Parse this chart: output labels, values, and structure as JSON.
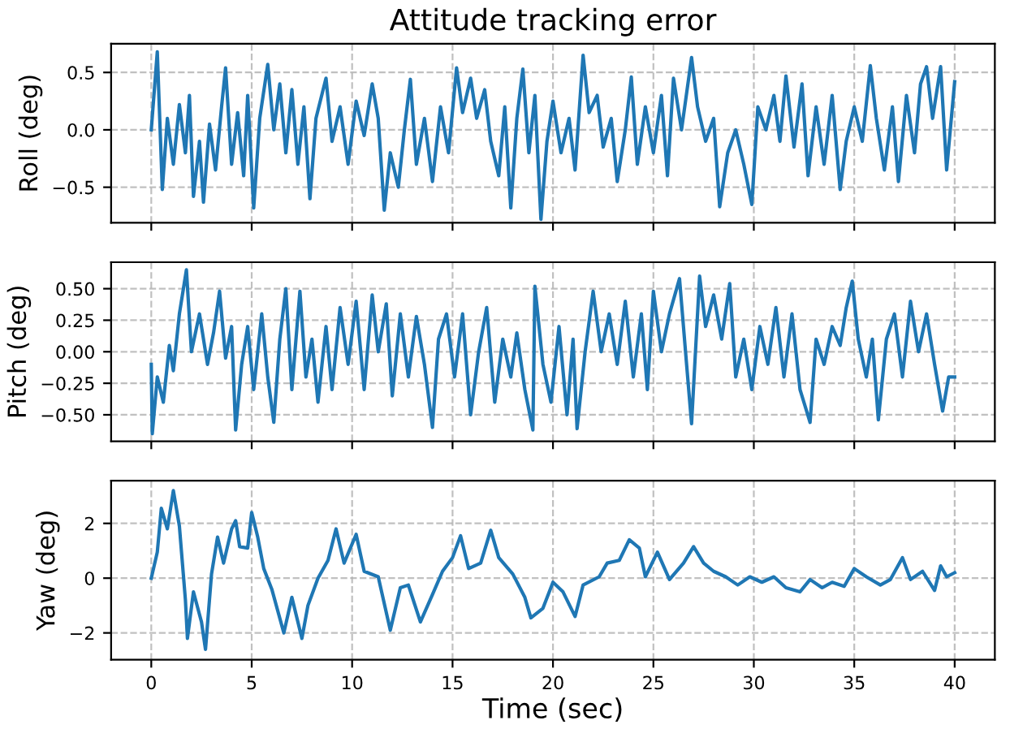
{
  "chart_data": [
    {
      "type": "line",
      "title": "Attitude tracking error",
      "ylabel": "Roll (deg)",
      "xlim": [
        -2,
        42
      ],
      "xticks": [
        0,
        5,
        10,
        15,
        20,
        25,
        30,
        35,
        40
      ],
      "ylim": [
        -0.81,
        0.75
      ],
      "yticks": [
        {
          "value": -0.5,
          "label": "−0.5"
        },
        {
          "value": 0,
          "label": "0.0"
        },
        0.5
      ],
      "grid": true,
      "tick_labels": "y",
      "series": [
        {
          "color": "#1f77b4",
          "x": [
            0,
            0.3,
            0.55,
            0.8,
            1.1,
            1.4,
            1.7,
            1.9,
            2.1,
            2.4,
            2.6,
            2.9,
            3.2,
            3.5,
            3.7,
            4.0,
            4.3,
            4.6,
            4.8,
            5.1,
            5.4,
            5.8,
            6.1,
            6.4,
            6.7,
            7.0,
            7.3,
            7.6,
            7.9,
            8.2,
            8.7,
            9.0,
            9.4,
            9.8,
            10.2,
            10.6,
            11.0,
            11.3,
            11.6,
            11.9,
            12.3,
            12.6,
            12.9,
            13.2,
            13.6,
            14.0,
            14.4,
            14.8,
            15.2,
            15.5,
            15.9,
            16.2,
            16.6,
            16.9,
            17.3,
            17.6,
            17.9,
            18.2,
            18.5,
            18.8,
            19.1,
            19.4,
            19.7,
            20.0,
            20.4,
            20.8,
            21.1,
            21.5,
            21.8,
            22.2,
            22.5,
            22.9,
            23.2,
            23.6,
            23.9,
            24.2,
            24.6,
            25.0,
            25.4,
            25.7,
            26.0,
            26.4,
            26.9,
            27.2,
            27.6,
            28.0,
            28.3,
            28.7,
            29.1,
            29.5,
            29.9,
            30.2,
            30.6,
            31.0,
            31.3,
            31.6,
            32.0,
            32.4,
            32.7,
            33.1,
            33.5,
            33.9,
            34.3,
            34.6,
            35.0,
            35.4,
            35.8,
            36.1,
            36.5,
            36.9,
            37.2,
            37.6,
            38.0,
            38.3,
            38.6,
            38.9,
            39.3,
            39.6,
            40.0
          ],
          "values": [
            0.0,
            0.68,
            -0.52,
            0.1,
            -0.3,
            0.22,
            -0.2,
            0.3,
            -0.58,
            -0.1,
            -0.63,
            0.05,
            -0.35,
            0.2,
            0.54,
            -0.3,
            0.15,
            -0.4,
            0.3,
            -0.68,
            0.1,
            0.57,
            0.0,
            0.4,
            -0.2,
            0.35,
            -0.3,
            0.2,
            -0.6,
            0.1,
            0.45,
            -0.1,
            0.2,
            -0.3,
            0.25,
            -0.05,
            0.4,
            0.1,
            -0.7,
            -0.2,
            -0.5,
            0.0,
            0.44,
            -0.3,
            0.1,
            -0.45,
            0.2,
            -0.2,
            0.54,
            0.15,
            0.45,
            0.1,
            0.35,
            -0.1,
            -0.4,
            0.2,
            -0.68,
            0.1,
            0.53,
            -0.2,
            0.3,
            -0.78,
            -0.1,
            0.25,
            -0.2,
            0.1,
            -0.35,
            0.65,
            0.15,
            0.3,
            -0.15,
            0.1,
            -0.45,
            0.0,
            0.46,
            -0.3,
            0.2,
            -0.2,
            0.3,
            -0.4,
            0.45,
            0.0,
            0.63,
            0.2,
            -0.1,
            0.1,
            -0.67,
            -0.2,
            0.0,
            -0.3,
            -0.65,
            0.2,
            0.0,
            0.3,
            -0.1,
            0.47,
            -0.15,
            0.4,
            -0.4,
            0.2,
            -0.3,
            0.3,
            -0.52,
            -0.1,
            0.2,
            -0.1,
            0.56,
            0.1,
            -0.35,
            0.2,
            -0.45,
            0.3,
            -0.2,
            0.4,
            0.55,
            0.1,
            0.55,
            -0.35,
            0.42
          ]
        }
      ]
    },
    {
      "type": "line",
      "ylabel": "Pitch (deg)",
      "xlim": [
        -2,
        42
      ],
      "xticks": [
        0,
        5,
        10,
        15,
        20,
        25,
        30,
        35,
        40
      ],
      "ylim": [
        -0.71,
        0.71
      ],
      "yticks": [
        {
          "value": -0.5,
          "label": "−0.50"
        },
        {
          "value": -0.25,
          "label": "−0.25"
        },
        {
          "value": 0,
          "label": "0.00"
        },
        {
          "value": 0.25,
          "label": "0.25"
        },
        {
          "value": 0.5,
          "label": "0.50"
        }
      ],
      "grid": true,
      "tick_labels": "y",
      "series": [
        {
          "color": "#1f77b4",
          "x": [
            0,
            0.05,
            0.3,
            0.6,
            0.9,
            1.1,
            1.4,
            1.75,
            2.0,
            2.4,
            2.8,
            3.1,
            3.4,
            3.7,
            4.0,
            4.2,
            4.5,
            4.8,
            5.1,
            5.5,
            5.8,
            6.1,
            6.4,
            6.7,
            7.0,
            7.4,
            7.7,
            8.0,
            8.3,
            8.7,
            9.0,
            9.4,
            9.8,
            10.2,
            10.6,
            11.0,
            11.3,
            11.7,
            12.0,
            12.4,
            12.8,
            13.2,
            13.6,
            14.0,
            14.3,
            14.7,
            15.1,
            15.5,
            15.9,
            16.3,
            16.7,
            17.1,
            17.5,
            17.9,
            18.2,
            18.6,
            19.0,
            19.1,
            19.5,
            19.9,
            20.3,
            20.7,
            21.0,
            21.2,
            21.6,
            22.0,
            22.4,
            22.8,
            23.2,
            23.6,
            24.0,
            24.4,
            24.7,
            25.0,
            25.4,
            25.8,
            26.3,
            26.6,
            26.9,
            27.3,
            27.6,
            28.0,
            28.4,
            28.8,
            29.1,
            29.5,
            29.9,
            30.3,
            30.7,
            31.1,
            31.5,
            31.9,
            32.3,
            32.8,
            33.1,
            33.5,
            33.9,
            34.3,
            34.6,
            34.9,
            35.2,
            35.6,
            35.9,
            36.2,
            36.6,
            37.0,
            37.4,
            37.8,
            38.2,
            38.6,
            39.0,
            39.4,
            39.7,
            40.0
          ],
          "values": [
            -0.1,
            -0.65,
            -0.2,
            -0.4,
            0.05,
            -0.15,
            0.3,
            0.65,
            0.0,
            0.3,
            -0.1,
            0.15,
            0.48,
            -0.05,
            0.2,
            -0.62,
            -0.1,
            0.2,
            -0.3,
            0.3,
            -0.2,
            -0.56,
            0.1,
            0.5,
            -0.3,
            0.48,
            -0.2,
            0.1,
            -0.4,
            0.2,
            -0.3,
            0.35,
            -0.1,
            0.4,
            -0.3,
            0.45,
            0.0,
            0.38,
            -0.35,
            0.3,
            -0.2,
            0.28,
            -0.1,
            -0.6,
            0.1,
            0.3,
            -0.2,
            0.3,
            -0.5,
            0.0,
            0.35,
            -0.4,
            0.1,
            -0.2,
            0.15,
            -0.3,
            -0.62,
            0.52,
            -0.1,
            -0.4,
            0.2,
            -0.5,
            0.1,
            -0.61,
            0.0,
            0.48,
            0.0,
            0.3,
            -0.1,
            0.4,
            -0.2,
            0.3,
            -0.3,
            0.48,
            0.0,
            0.3,
            0.58,
            0.0,
            -0.57,
            0.6,
            0.2,
            0.45,
            0.1,
            0.54,
            -0.2,
            0.1,
            -0.3,
            0.2,
            -0.1,
            0.35,
            -0.2,
            0.3,
            -0.3,
            -0.56,
            0.1,
            -0.1,
            0.2,
            0.05,
            0.35,
            0.56,
            0.1,
            -0.2,
            0.1,
            -0.54,
            0.1,
            0.3,
            -0.2,
            0.4,
            0.0,
            0.3,
            -0.1,
            -0.47,
            -0.2,
            -0.2
          ]
        }
      ]
    },
    {
      "type": "line",
      "ylabel": "Yaw (deg)",
      "xlabel": "Time (sec)",
      "xlim": [
        -2,
        42
      ],
      "xticks": [
        0,
        5,
        10,
        15,
        20,
        25,
        30,
        35,
        40
      ],
      "ylim": [
        -2.98,
        3.56
      ],
      "yticks": [
        {
          "value": -2,
          "label": "−2"
        },
        0,
        2
      ],
      "grid": true,
      "series": [
        {
          "color": "#1f77b4",
          "x": [
            0,
            0.3,
            0.5,
            0.8,
            1.1,
            1.4,
            1.7,
            1.8,
            2.1,
            2.5,
            2.7,
            3.0,
            3.3,
            3.6,
            4.0,
            4.2,
            4.4,
            4.8,
            5.0,
            5.3,
            5.6,
            6.0,
            6.6,
            7.0,
            7.5,
            7.8,
            8.3,
            8.8,
            9.2,
            9.6,
            10.2,
            10.6,
            11.3,
            11.9,
            12.4,
            12.8,
            13.4,
            14.0,
            14.5,
            15.0,
            15.4,
            15.8,
            16.4,
            16.9,
            17.3,
            18.0,
            18.6,
            18.9,
            19.5,
            20.0,
            20.5,
            21.1,
            21.5,
            22.3,
            22.7,
            23.3,
            23.8,
            24.3,
            24.6,
            25.2,
            25.8,
            26.5,
            27.0,
            27.5,
            28.0,
            28.6,
            29.2,
            29.8,
            30.4,
            31.0,
            31.6,
            32.3,
            32.8,
            33.4,
            33.9,
            34.5,
            35.0,
            35.6,
            36.3,
            36.8,
            37.4,
            37.8,
            38.4,
            39.0,
            39.3,
            39.6,
            40.0
          ],
          "values": [
            0,
            0.95,
            2.55,
            1.8,
            3.2,
            1.9,
            -0.8,
            -2.2,
            -0.5,
            -1.6,
            -2.6,
            0.15,
            1.5,
            0.55,
            1.8,
            2.1,
            1.15,
            1.1,
            2.4,
            1.5,
            0.35,
            -0.4,
            -2.0,
            -0.7,
            -2.2,
            -1.0,
            0,
            0.65,
            1.8,
            0.55,
            1.6,
            0.25,
            0.05,
            -1.9,
            -0.35,
            -0.25,
            -1.6,
            -0.6,
            0.25,
            0.75,
            1.55,
            0.35,
            0.55,
            1.75,
            0.75,
            0.15,
            -0.7,
            -1.45,
            -1.1,
            -0.15,
            -0.5,
            -1.4,
            -0.25,
            0.05,
            0.55,
            0.65,
            1.4,
            1.1,
            0.05,
            0.95,
            -0.05,
            0.55,
            1.15,
            0.55,
            0.25,
            0.05,
            -0.25,
            0.05,
            -0.15,
            0.05,
            -0.35,
            -0.5,
            -0.05,
            -0.35,
            -0.15,
            -0.3,
            0.35,
            0.05,
            -0.25,
            -0.05,
            0.75,
            -0.05,
            0.25,
            -0.45,
            0.45,
            0.05,
            0.2
          ]
        }
      ]
    }
  ]
}
